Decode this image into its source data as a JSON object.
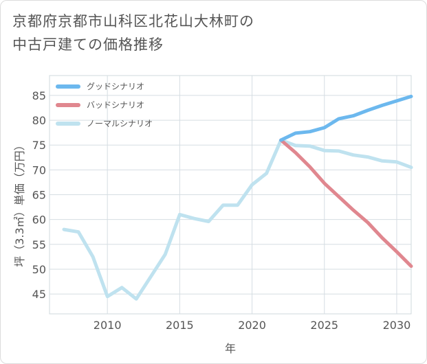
{
  "chart_data": {
    "type": "line",
    "title_lines": [
      "京都府京都市山科区北花山大林町の",
      "中古戸建ての価格推移"
    ],
    "xlabel": "年",
    "ylabel": "坪（3.3㎡）単価（万円）",
    "xlim": [
      2006,
      2031
    ],
    "ylim": [
      41,
      89
    ],
    "x_ticks": [
      2010,
      2015,
      2020,
      2025,
      2030
    ],
    "y_ticks": [
      45,
      50,
      55,
      60,
      65,
      70,
      75,
      80,
      85
    ],
    "grid": true,
    "legend_position": "top-left",
    "series": [
      {
        "name": "グッドシナリオ",
        "color": "#6cb8ee",
        "x": [
          2022,
          2023,
          2024,
          2025,
          2026,
          2027,
          2028,
          2029,
          2030,
          2031
        ],
        "values": [
          76.0,
          77.4,
          77.7,
          78.5,
          80.3,
          80.9,
          82.0,
          83.0,
          83.9,
          84.8
        ]
      },
      {
        "name": "バッドシナリオ",
        "color": "#e0878f",
        "x": [
          2022,
          2023,
          2024,
          2025,
          2026,
          2027,
          2028,
          2029,
          2030,
          2031
        ],
        "values": [
          76.0,
          73.5,
          70.6,
          67.3,
          64.6,
          61.9,
          59.4,
          56.3,
          53.5,
          50.6
        ]
      },
      {
        "name": "ノーマルシナリオ",
        "color": "#bfe2ef",
        "x": [
          2007,
          2008,
          2009,
          2010,
          2011,
          2012,
          2013,
          2014,
          2015,
          2016,
          2017,
          2018,
          2019,
          2020,
          2021,
          2022,
          2023,
          2024,
          2025,
          2026,
          2027,
          2028,
          2029,
          2030,
          2031
        ],
        "values": [
          58.0,
          57.5,
          52.5,
          44.5,
          46.3,
          44.0,
          48.5,
          53.0,
          61.0,
          60.2,
          59.6,
          62.9,
          62.9,
          67.0,
          69.3,
          76.0,
          74.9,
          74.8,
          73.9,
          73.8,
          73.0,
          72.6,
          71.8,
          71.6,
          70.5
        ]
      }
    ]
  }
}
